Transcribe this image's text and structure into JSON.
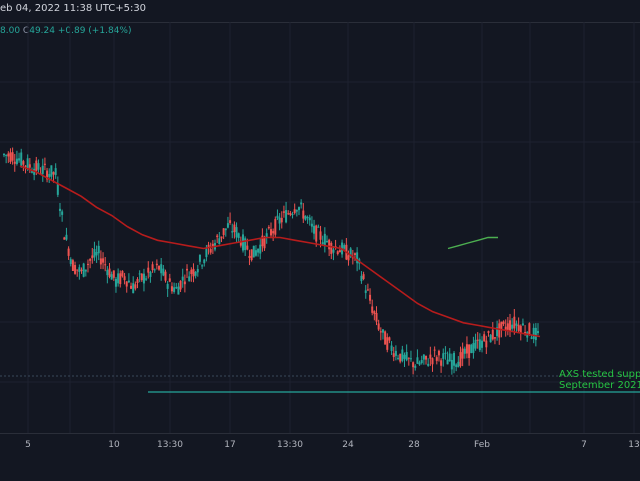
{
  "header": {
    "date_text": "eb 04, 2022 11:38 UTC+5:30",
    "ohlc_prefix": "8.00",
    "close_key": "C",
    "close_value": "49.24",
    "change": "+0.89 (+1.84%)"
  },
  "x_axis": {
    "ticks": [
      "5",
      "10",
      "13:30",
      "17",
      "13:30",
      "24",
      "28",
      "Feb",
      "7",
      "13"
    ]
  },
  "annotation": {
    "line1": "AXS tested suppor",
    "line2": "September 2021."
  },
  "chart_data": {
    "type": "candlestick",
    "series": [
      {
        "values": [
          88,
          86,
          84,
          83,
          82,
          81,
          60,
          48,
          45,
          50,
          52,
          47,
          42,
          44,
          40,
          43,
          45,
          47,
          42,
          39,
          44,
          46,
          50,
          54,
          58,
          62,
          60,
          55,
          52,
          56,
          60,
          64,
          67,
          70,
          66,
          60,
          58,
          55,
          54,
          52,
          50,
          40,
          30,
          22,
          18,
          15,
          13,
          12,
          13,
          15,
          14,
          13,
          14,
          17,
          19,
          21,
          23,
          25,
          27,
          26,
          24,
          22,
          21
        ]
      },
      {
        "values": [
          84,
          82,
          79,
          76,
          73,
          69,
          66,
          62,
          59,
          57,
          56,
          55,
          54,
          55,
          56,
          57,
          58,
          58,
          57,
          56,
          55,
          54,
          50,
          46,
          42,
          38,
          34,
          31,
          29,
          27,
          26,
          25,
          24,
          23,
          22
        ]
      },
      {
        "values": [
          54,
          55,
          56,
          57,
          58,
          58
        ]
      }
    ]
  },
  "colors": {
    "background": "#131722",
    "up": "#26a69a",
    "down": "#ef5350",
    "ma": "#b71c1c",
    "ma_green": "#4caf50",
    "support_line": "#26a69a",
    "annotation": "#26c443"
  }
}
